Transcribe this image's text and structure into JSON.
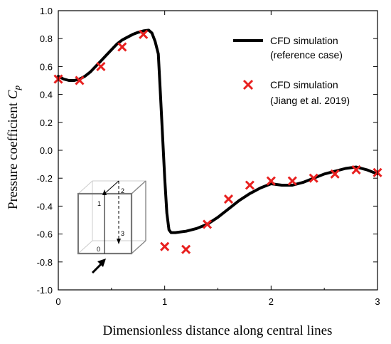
{
  "chart_data": {
    "type": "line",
    "xlabel": "Dimensionless distance along central lines",
    "ylabel_prefix": "Pressure coefficient ",
    "ylabel_symbol": "C",
    "ylabel_subscript": "p",
    "xlim": [
      0,
      3
    ],
    "ylim": [
      -1.0,
      1.0
    ],
    "x_ticks": [
      "0",
      "1",
      "2",
      "3"
    ],
    "y_ticks": [
      "1.0",
      "0.8",
      "0.6",
      "0.4",
      "0.2",
      "0.0",
      "-0.2",
      "-0.4",
      "-0.6",
      "-0.8",
      "-1.0"
    ],
    "legend_position": "top-right",
    "series": [
      {
        "name_line1": "CFD simulation",
        "name_line2": "(reference case)",
        "style": "line",
        "color": "#000000",
        "x": [
          0.0,
          0.05,
          0.1,
          0.15,
          0.2,
          0.25,
          0.3,
          0.35,
          0.4,
          0.45,
          0.5,
          0.55,
          0.6,
          0.65,
          0.7,
          0.75,
          0.8,
          0.85,
          0.88,
          0.91,
          0.94,
          0.96,
          0.98,
          1.0,
          1.02,
          1.04,
          1.06,
          1.1,
          1.2,
          1.3,
          1.4,
          1.5,
          1.6,
          1.7,
          1.8,
          1.9,
          2.0,
          2.1,
          2.2,
          2.3,
          2.4,
          2.5,
          2.6,
          2.7,
          2.8,
          2.9,
          3.0
        ],
        "y": [
          0.53,
          0.51,
          0.5,
          0.5,
          0.51,
          0.53,
          0.56,
          0.6,
          0.64,
          0.68,
          0.72,
          0.76,
          0.79,
          0.81,
          0.83,
          0.845,
          0.855,
          0.86,
          0.84,
          0.78,
          0.69,
          0.4,
          0.1,
          -0.2,
          -0.45,
          -0.57,
          -0.59,
          -0.59,
          -0.58,
          -0.56,
          -0.53,
          -0.48,
          -0.42,
          -0.36,
          -0.31,
          -0.27,
          -0.24,
          -0.25,
          -0.25,
          -0.23,
          -0.2,
          -0.17,
          -0.15,
          -0.13,
          -0.12,
          -0.14,
          -0.17
        ]
      },
      {
        "name_line1": "CFD simulation",
        "name_line2": "(Jiang et al. 2019)",
        "style": "marker-x",
        "color": "#e8201f",
        "x": [
          0.0,
          0.2,
          0.4,
          0.6,
          0.8,
          1.0,
          1.2,
          1.4,
          1.6,
          1.8,
          2.0,
          2.2,
          2.4,
          2.6,
          2.8,
          3.0
        ],
        "y": [
          0.51,
          0.5,
          0.6,
          0.74,
          0.83,
          -0.69,
          -0.71,
          -0.53,
          -0.35,
          -0.25,
          -0.22,
          -0.22,
          -0.2,
          -0.17,
          -0.14,
          -0.16
        ]
      }
    ],
    "inset": {
      "label_0": "0",
      "label_1": "1",
      "label_2": "2",
      "label_3": "3"
    }
  }
}
